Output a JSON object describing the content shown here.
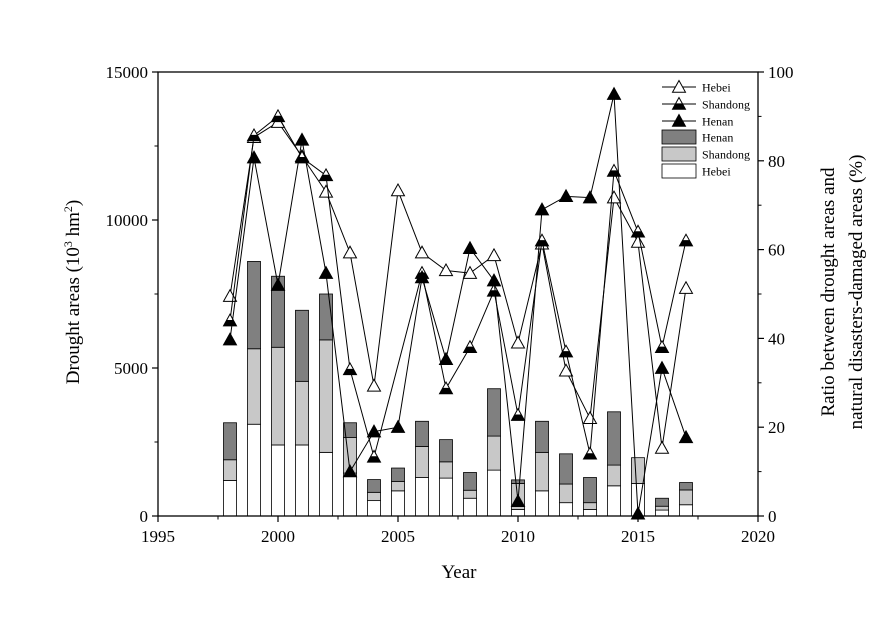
{
  "chart_data": {
    "type": "bar",
    "title": "",
    "xlabel": "Year",
    "ylabel_left": "Drought areas (10³ hm²)",
    "ylabel_left_parts": {
      "pre": "Drought areas (10",
      "sup": "3",
      "mid": " hm",
      "sup2": "2",
      "post": ")"
    },
    "ylabel_right_line1": "Ratio between drought areas and",
    "ylabel_right_line2": "natural disasters-damaged areas (%)",
    "xlim": [
      1995,
      2020
    ],
    "ylim_left": [
      0,
      15000
    ],
    "ylim_right": [
      0,
      100
    ],
    "x_ticks": [
      1995,
      2000,
      2005,
      2010,
      2015,
      2020
    ],
    "y_left_ticks": [
      0,
      5000,
      10000,
      15000
    ],
    "y_right_ticks": [
      0,
      20,
      40,
      60,
      80,
      100
    ],
    "x_tick_labels": [
      "1995",
      "2000",
      "2005",
      "2010",
      "2015",
      "2020"
    ],
    "y_left_tick_labels": [
      "0",
      "5000",
      "10000",
      "15000"
    ],
    "y_right_tick_labels": [
      "0",
      "20",
      "40",
      "60",
      "80",
      "100"
    ],
    "grid": false,
    "legend_position": "top-right",
    "years": [
      1998,
      1999,
      2000,
      2001,
      2002,
      2003,
      2004,
      2005,
      2006,
      2007,
      2008,
      2009,
      2010,
      2011,
      2012,
      2013,
      2014,
      2015,
      2016,
      2017
    ],
    "bar_series": [
      {
        "name": "Hebei",
        "color": "#ffffff",
        "values": [
          1200,
          3100,
          2400,
          2400,
          2150,
          1450,
          520,
          850,
          1300,
          1280,
          600,
          1550,
          220,
          850,
          450,
          220,
          1020,
          1100,
          200,
          380
        ]
      },
      {
        "name": "Shandong",
        "color": "#c8c8c8",
        "values": [
          700,
          2550,
          3300,
          2150,
          3800,
          1200,
          280,
          320,
          1050,
          550,
          270,
          1150,
          880,
          1300,
          630,
          230,
          700,
          870,
          130,
          500
        ]
      },
      {
        "name": "Henan",
        "color": "#808080",
        "values": [
          1250,
          2950,
          2400,
          2400,
          1550,
          500,
          430,
          450,
          850,
          750,
          600,
          1600,
          120,
          1050,
          1020,
          850,
          1800,
          0,
          270,
          250
        ]
      }
    ],
    "line_series": [
      {
        "name": "Hebei",
        "marker": "open-triangle",
        "values": [
          49.5,
          85.3,
          88.7,
          81.0,
          73.0,
          59.3,
          29.3,
          73.3,
          59.3,
          55.3,
          54.7,
          58.7,
          39.0,
          61.3,
          32.7,
          22.0,
          71.7,
          61.7,
          15.3,
          51.3
        ]
      },
      {
        "name": "Shandong",
        "marker": "half-filled-triangle",
        "values": [
          44.0,
          85.7,
          90.0,
          80.7,
          76.7,
          33.0,
          13.3,
          null,
          54.7,
          28.7,
          38.0,
          50.7,
          22.7,
          62.0,
          37.0,
          14.0,
          77.7,
          64.0,
          38.0,
          62.0
        ]
      },
      {
        "name": "Henan",
        "marker": "filled-triangle",
        "values": [
          39.7,
          80.7,
          52.0,
          84.7,
          54.7,
          10.0,
          19.0,
          20.0,
          53.7,
          35.3,
          60.3,
          53.0,
          3.3,
          69.0,
          72.0,
          71.7,
          95.0,
          0.5,
          33.3,
          17.7
        ]
      }
    ]
  }
}
